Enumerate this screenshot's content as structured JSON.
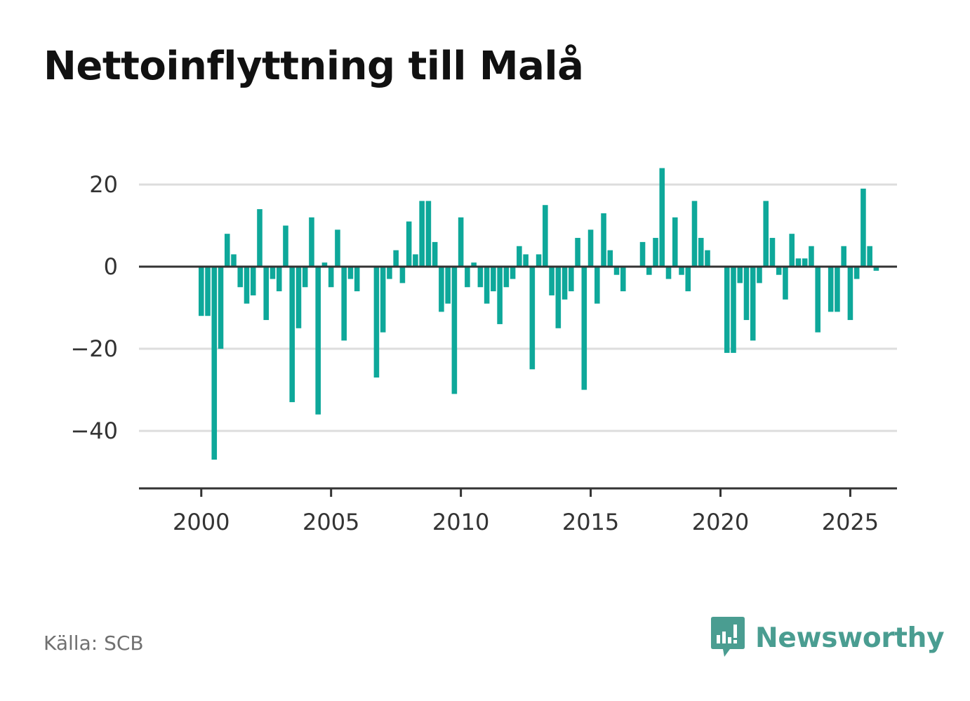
{
  "title": "Nettoinflyttning till Malå",
  "source": "Källa: SCB",
  "brand": {
    "name": "Newsworthy",
    "icon": "newsworthy-logo-icon",
    "color": "#4a9d91"
  },
  "colors": {
    "bar": "#0ea89a",
    "grid": "#dddddd",
    "axis": "#333333"
  },
  "chart_data": {
    "type": "bar",
    "title": "Nettoinflyttning till Malå",
    "xlabel": "",
    "ylabel": "",
    "grid": true,
    "frequency": "quarterly",
    "start": "2000 Q1",
    "xlim": [
      1997.6,
      2026.8
    ],
    "ylim": [
      -54,
      27
    ],
    "yticks": [
      20,
      0,
      -20,
      -40
    ],
    "ytick_labels": [
      "20",
      "0",
      "−20",
      "−40"
    ],
    "xticks": [
      2000,
      2005,
      2010,
      2015,
      2020,
      2025
    ],
    "xtick_labels": [
      "2000",
      "2005",
      "2010",
      "2015",
      "2020",
      "2025"
    ],
    "values": [
      -12,
      -12,
      -47,
      -20,
      8,
      3,
      -5,
      -9,
      -7,
      14,
      -13,
      -3,
      -6,
      10,
      -33,
      -15,
      -5,
      12,
      -36,
      1,
      -5,
      9,
      -18,
      -3,
      -6,
      0,
      0,
      -27,
      -16,
      -3,
      4,
      -4,
      11,
      3,
      16,
      16,
      6,
      -11,
      -9,
      -31,
      12,
      -5,
      1,
      -5,
      -9,
      -6,
      -14,
      -5,
      -3,
      5,
      3,
      -25,
      3,
      15,
      -7,
      -15,
      -8,
      -6,
      7,
      -30,
      9,
      -9,
      13,
      4,
      -2,
      -6,
      0,
      0,
      6,
      -2,
      7,
      24,
      -3,
      12,
      -2,
      -6,
      16,
      7,
      4,
      0,
      0,
      -21,
      -21,
      -4,
      -13,
      -18,
      -4,
      16,
      7,
      -2,
      -8,
      8,
      2,
      2,
      5,
      -16,
      0,
      -11,
      -11,
      5,
      -13,
      -3,
      19,
      5,
      -1
    ]
  }
}
